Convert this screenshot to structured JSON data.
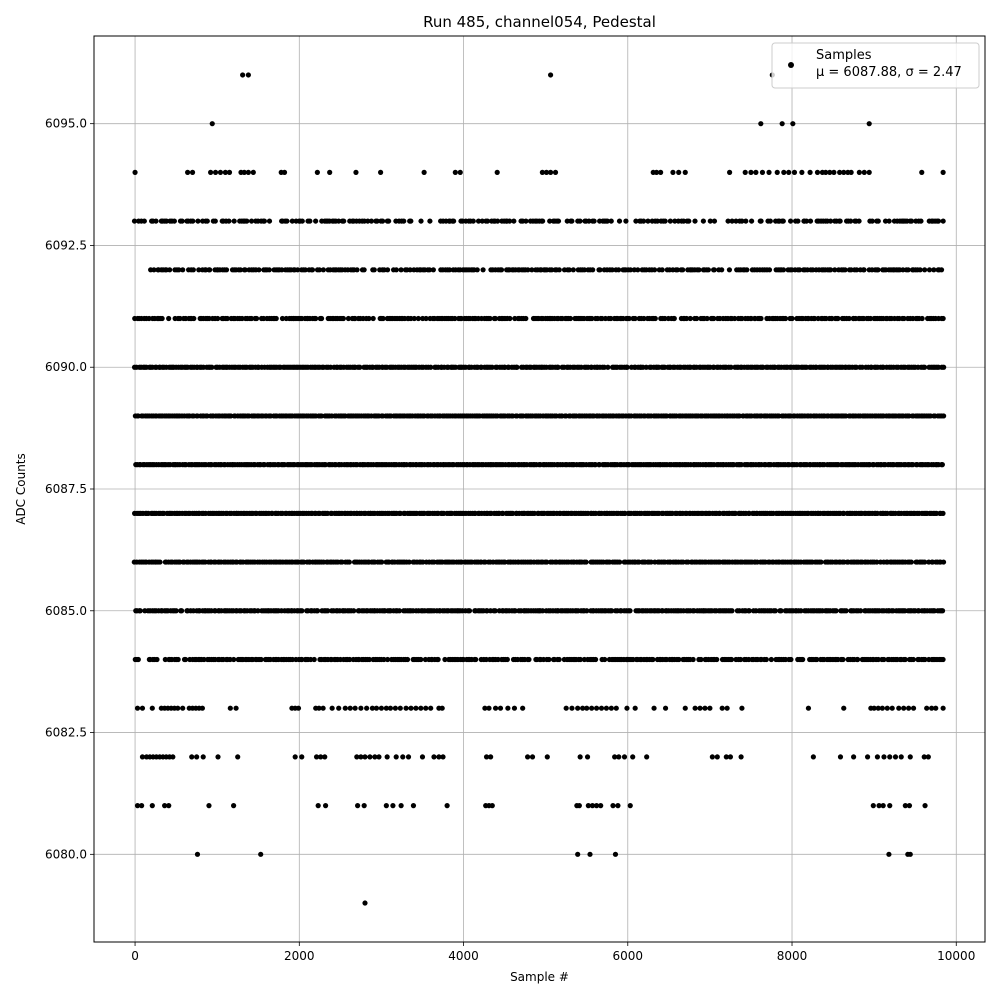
{
  "chart_data": {
    "type": "scatter",
    "title": "Run 485, channel054, Pedestal",
    "xlabel": "Sample #",
    "ylabel": "ADC Counts",
    "xlim": [
      -500,
      10350
    ],
    "ylim": [
      6078.2,
      6096.8
    ],
    "x_ticks": [
      0,
      2000,
      4000,
      6000,
      8000,
      10000
    ],
    "x_tick_labels": [
      "0",
      "2000",
      "4000",
      "6000",
      "8000",
      "10000"
    ],
    "y_ticks": [
      6080.0,
      6082.5,
      6085.0,
      6087.5,
      6090.0,
      6092.5,
      6095.0
    ],
    "y_tick_labels": [
      "6080.0",
      "6082.5",
      "6085.0",
      "6087.5",
      "6090.0",
      "6092.5",
      "6095.0"
    ],
    "grid": true,
    "legend_position": "top-right",
    "marker_color": "#000000",
    "series": [
      {
        "name": "Samples",
        "stats_label": "μ = 6087.88, σ = 2.47",
        "levels": [
          {
            "y": 6096,
            "x": [
              1310,
              1380,
              5060,
              7760
            ]
          },
          {
            "y": 6095,
            "x": [
              940,
              7620,
              7880,
              8010,
              8940
            ]
          },
          {
            "y": 6094,
            "x": [
              0,
              640,
              700,
              920,
              980,
              1040,
              1100,
              1150,
              1290,
              1330,
              1380,
              1440,
              1780,
              1820,
              2220,
              2370,
              2690,
              2990,
              3520,
              3900,
              3960,
              4410,
              4960,
              5010,
              5060,
              5120,
              6310,
              6350,
              6400,
              6550,
              6620,
              6700,
              7240,
              7430,
              7500,
              7560,
              7640,
              7720,
              7820,
              7900,
              7960,
              8030,
              8120,
              8220,
              8310,
              8370,
              8410,
              8460,
              8510,
              8580,
              8630,
              8680,
              8720,
              8820,
              8880,
              8940,
              9580,
              9840
            ]
          }
        ],
        "bands": [
          {
            "y": 6093,
            "x_min": 0,
            "x_max": 9840,
            "density": 0.6
          },
          {
            "y": 6092,
            "x_min": 150,
            "x_max": 9840,
            "density": 0.7
          },
          {
            "y": 6091,
            "x_min": 0,
            "x_max": 9840,
            "density": 0.8
          },
          {
            "y": 6090,
            "x_min": 0,
            "x_max": 9840,
            "density": 0.95
          },
          {
            "y": 6089,
            "x_min": 0,
            "x_max": 9840,
            "density": 1.0
          },
          {
            "y": 6088,
            "x_min": 0,
            "x_max": 9840,
            "density": 1.0
          },
          {
            "y": 6087,
            "x_min": 0,
            "x_max": 9840,
            "density": 1.0
          },
          {
            "y": 6086,
            "x_min": 0,
            "x_max": 9840,
            "density": 0.95
          },
          {
            "y": 6085,
            "x_min": 0,
            "x_max": 9840,
            "density": 0.9
          },
          {
            "y": 6084,
            "x_min": 0,
            "x_max": 9840,
            "density": 0.8
          }
        ],
        "sparse_levels": [
          {
            "y": 6083,
            "x": [
              30,
              90,
              210,
              320,
              360,
              400,
              440,
              480,
              520,
              580,
              660,
              700,
              740,
              780,
              820,
              1160,
              1230,
              1910,
              1950,
              1990,
              2200,
              2240,
              2290,
              2400,
              2480,
              2560,
              2620,
              2680,
              2750,
              2820,
              2890,
              2940,
              3000,
              3060,
              3110,
              3170,
              3230,
              3300,
              3360,
              3420,
              3480,
              3540,
              3600,
              3700,
              3740,
              4260,
              4310,
              4390,
              4450,
              4540,
              4620,
              4720,
              5250,
              5320,
              5390,
              5450,
              5500,
              5560,
              5620,
              5680,
              5740,
              5800,
              5860,
              5990,
              6090,
              6320,
              6460,
              6700,
              6820,
              6880,
              6940,
              7000,
              7150,
              7210,
              7390,
              8200,
              8630,
              8960,
              9000,
              9050,
              9100,
              9160,
              9220,
              9300,
              9360,
              9420,
              9480,
              9640,
              9700,
              9750,
              9840
            ]
          },
          {
            "y": 6082,
            "x": [
              90,
              140,
              180,
              220,
              260,
              300,
              340,
              380,
              420,
              460,
              690,
              750,
              830,
              1010,
              1250,
              1950,
              2030,
              2210,
              2260,
              2310,
              2700,
              2750,
              2800,
              2860,
              2920,
              2970,
              3070,
              3180,
              3260,
              3330,
              3500,
              3640,
              3700,
              3750,
              4280,
              4330,
              4780,
              4840,
              5020,
              5420,
              5510,
              5840,
              5890,
              5960,
              6060,
              6230,
              7030,
              7090,
              7200,
              7250,
              7380,
              8260,
              8590,
              8750,
              8920,
              9040,
              9120,
              9190,
              9260,
              9330,
              9440,
              9610,
              9660
            ]
          },
          {
            "y": 6081,
            "x": [
              30,
              80,
              210,
              360,
              410,
              900,
              1200,
              2230,
              2320,
              2710,
              2790,
              3060,
              3140,
              3240,
              3390,
              3800,
              4270,
              4310,
              4350,
              5380,
              5410,
              5520,
              5570,
              5620,
              5670,
              5820,
              5880,
              6030,
              8990,
              9060,
              9110,
              9190,
              9380,
              9430,
              9620
            ]
          },
          {
            "y": 6080,
            "x": [
              760,
              1530,
              5390,
              5540,
              5850,
              9180,
              9410,
              9440
            ]
          },
          {
            "y": 6079,
            "x": [
              2800
            ]
          }
        ]
      }
    ]
  }
}
